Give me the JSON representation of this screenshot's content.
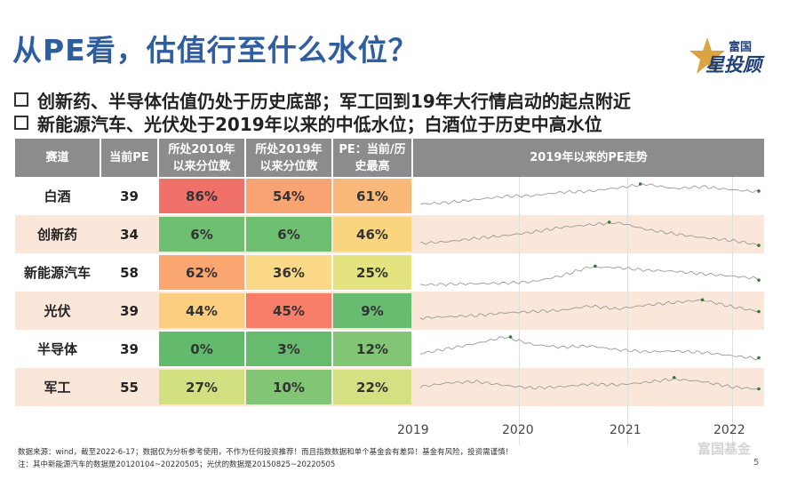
{
  "title": "从PE看，估值行至什么水位？",
  "logo": {
    "line1": "富国",
    "line2": "投顾",
    "star_text": "星"
  },
  "bullets": [
    "创新药、半导体估值仍处于历史底部；军工回到19年大行情启动的起点附近",
    "新能源汽车、光伏处于2019年以来的中低水位；白酒位于历史中高水位"
  ],
  "table": {
    "headers": {
      "sector": "赛道",
      "pe": "当前PE",
      "pct2010": "所处2010年以来分位数",
      "pct2019": "所处2019年以来分位数",
      "pe_ratio": "PE：当前/历史最高",
      "trend": "2019年以来的PE走势"
    },
    "rows": [
      {
        "sector": "白酒",
        "pe": "39",
        "pct2010": "86%",
        "pct2019": "54%",
        "ratio": "61%",
        "c2010": "#f0706a",
        "c2019": "#f9a373",
        "cratio": "#fbb979"
      },
      {
        "sector": "创新药",
        "pe": "34",
        "pct2010": "6%",
        "pct2019": "6%",
        "ratio": "46%",
        "c2010": "#6ebf72",
        "c2019": "#6ebf72",
        "cratio": "#f8d57e"
      },
      {
        "sector": "新能源汽车",
        "pe": "58",
        "pct2010": "62%",
        "pct2019": "36%",
        "ratio": "25%",
        "c2010": "#f9a671",
        "c2019": "#fcd986",
        "cratio": "#e3e37f"
      },
      {
        "sector": "光伏",
        "pe": "39",
        "pct2010": "44%",
        "pct2019": "45%",
        "ratio": "9%",
        "c2010": "#fcce7f",
        "c2019": "#f97e6a",
        "cratio": "#67bc6f"
      },
      {
        "sector": "半导体",
        "pe": "39",
        "pct2010": "0%",
        "pct2019": "3%",
        "ratio": "12%",
        "c2010": "#63ba6c",
        "c2019": "#66bb6e",
        "cratio": "#82c574"
      },
      {
        "sector": "军工",
        "pe": "55",
        "pct2010": "27%",
        "pct2019": "10%",
        "ratio": "22%",
        "c2010": "#d3e082",
        "c2019": "#82c574",
        "cratio": "#d5e083"
      }
    ]
  },
  "trend": {
    "series": [
      {
        "sector": "白酒",
        "values": [
          0.22,
          0.28,
          0.4,
          0.52,
          0.55,
          0.68,
          0.72,
          0.85,
          1.0,
          0.82,
          0.9,
          0.78,
          0.7
        ]
      },
      {
        "sector": "创新药",
        "values": [
          0.18,
          0.25,
          0.38,
          0.48,
          0.62,
          0.8,
          0.9,
          1.0,
          0.72,
          0.55,
          0.4,
          0.3,
          0.12
        ]
      },
      {
        "sector": "新能源汽车",
        "values": [
          0.05,
          0.08,
          0.1,
          0.12,
          0.18,
          0.4,
          0.75,
          0.72,
          0.62,
          0.58,
          0.48,
          0.4,
          0.3
        ]
      },
      {
        "sector": "光伏",
        "values": [
          0.25,
          0.3,
          0.35,
          0.45,
          0.5,
          0.55,
          0.72,
          0.6,
          0.75,
          0.85,
          0.95,
          0.7,
          0.5
        ]
      },
      {
        "sector": "半导体",
        "values": [
          0.35,
          0.55,
          0.75,
          1.0,
          0.7,
          0.6,
          0.65,
          0.5,
          0.42,
          0.45,
          0.4,
          0.28,
          0.15
        ]
      },
      {
        "sector": "军工",
        "values": [
          0.55,
          0.7,
          0.75,
          0.6,
          0.5,
          0.55,
          0.65,
          0.62,
          0.72,
          0.85,
          0.75,
          0.55,
          0.45
        ]
      }
    ],
    "xticks": [
      "2019",
      "2020",
      "2021",
      "2022"
    ]
  },
  "footnotes": [
    "数据来源：wind，截至2022-6-17；数据仅为分析参考使用，不作为任何投资推荐！而且指数数据和单个基金会有差异！基金有风险，投资需谨慎！",
    "注：其中新能源汽车的数据是20120104~20220505；光伏的数据是20150825~20220505"
  ],
  "page_number": "5",
  "watermark": "富国基金"
}
